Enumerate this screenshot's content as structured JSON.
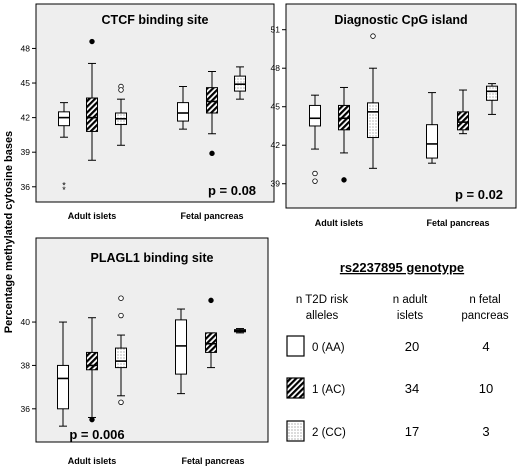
{
  "y_axis_label": "Percentage methylated cytosine bases",
  "colors": {
    "panel_bg": "#eeeeee",
    "box_fill": "#ffffff",
    "stroke": "#000000"
  },
  "chart_data": [
    {
      "type": "box",
      "title": "CTCF binding site",
      "categories": [
        "Adult islets",
        "Fetal pancreas"
      ],
      "ylim": [
        35.2,
        49.6
      ],
      "yticks": [
        36,
        39,
        42,
        45,
        48
      ],
      "p_value_text": "p = 0.08",
      "groups": [
        {
          "category": "Adult islets",
          "genotype": "0 (AA)",
          "whisker_low": 40.3,
          "q1": 41.3,
          "median": 42.0,
          "q3": 42.5,
          "whisker_high": 43.3,
          "outliers": [],
          "extremes": [
            36.2,
            35.8
          ],
          "pattern": "white"
        },
        {
          "category": "Adult islets",
          "genotype": "1 (AC)",
          "whisker_low": 38.3,
          "q1": 40.8,
          "median": 42.0,
          "q3": 43.7,
          "whisker_high": 46.7,
          "outliers": [
            48.6
          ],
          "extremes": [],
          "pattern": "hatch"
        },
        {
          "category": "Adult islets",
          "genotype": "2 (CC)",
          "whisker_low": 39.6,
          "q1": 41.4,
          "median": 41.9,
          "q3": 42.4,
          "whisker_high": 43.6,
          "outliers": [
            44.7,
            44.4
          ],
          "extremes": [],
          "pattern": "dots"
        },
        {
          "category": "Fetal pancreas",
          "genotype": "0 (AA)",
          "whisker_low": 41.0,
          "q1": 41.7,
          "median": 42.4,
          "q3": 43.3,
          "whisker_high": 44.7,
          "outliers": [],
          "extremes": [],
          "pattern": "white"
        },
        {
          "category": "Fetal pancreas",
          "genotype": "1 (AC)",
          "whisker_low": 40.6,
          "q1": 42.4,
          "median": 43.4,
          "q3": 44.6,
          "whisker_high": 46.0,
          "outliers": [
            38.9
          ],
          "extremes": [],
          "pattern": "hatch"
        },
        {
          "category": "Fetal pancreas",
          "genotype": "2 (CC)",
          "whisker_low": 43.6,
          "q1": 44.3,
          "median": 44.9,
          "q3": 45.6,
          "whisker_high": 46.4,
          "outliers": [],
          "extremes": [],
          "pattern": "dots"
        }
      ]
    },
    {
      "type": "box",
      "title": "Diagnostic CpG island",
      "categories": [
        "Adult islets",
        "Fetal pancreas"
      ],
      "ylim": [
        38.2,
        51.6
      ],
      "yticks": [
        39,
        42,
        45,
        48,
        51
      ],
      "p_value_text": "p = 0.02",
      "groups": [
        {
          "category": "Adult islets",
          "genotype": "0 (AA)",
          "whisker_low": 41.7,
          "q1": 43.5,
          "median": 44.1,
          "q3": 45.1,
          "whisker_high": 45.9,
          "outliers": [
            39.8,
            39.2
          ],
          "extremes": [],
          "pattern": "white"
        },
        {
          "category": "Adult islets",
          "genotype": "1 (AC)",
          "whisker_low": 41.4,
          "q1": 43.2,
          "median": 44.1,
          "q3": 45.1,
          "whisker_high": 46.5,
          "outliers": [
            39.3
          ],
          "extremes": [],
          "pattern": "hatch"
        },
        {
          "category": "Adult islets",
          "genotype": "2 (CC)",
          "whisker_low": 40.2,
          "q1": 42.6,
          "median": 44.6,
          "q3": 45.3,
          "whisker_high": 48.0,
          "outliers": [
            50.5
          ],
          "extremes": [],
          "pattern": "dots"
        },
        {
          "category": "Fetal pancreas",
          "genotype": "0 (AA)",
          "whisker_low": 40.6,
          "q1": 41.0,
          "median": 42.1,
          "q3": 43.6,
          "whisker_high": 46.1,
          "outliers": [],
          "extremes": [],
          "pattern": "white"
        },
        {
          "category": "Fetal pancreas",
          "genotype": "1 (AC)",
          "whisker_low": 42.9,
          "q1": 43.2,
          "median": 43.8,
          "q3": 44.6,
          "whisker_high": 46.3,
          "outliers": [],
          "extremes": [],
          "pattern": "hatch"
        },
        {
          "category": "Fetal pancreas",
          "genotype": "2 (CC)",
          "whisker_low": 44.4,
          "q1": 45.5,
          "median": 46.2,
          "q3": 46.6,
          "whisker_high": 46.8,
          "outliers": [],
          "extremes": [],
          "pattern": "dots"
        }
      ]
    },
    {
      "type": "box",
      "title": "PLAGL1 binding site",
      "categories": [
        "Adult islets",
        "Fetal pancreas"
      ],
      "ylim": [
        34.7,
        42.4
      ],
      "yticks": [
        36,
        38,
        40
      ],
      "p_value_text": "p = 0.006",
      "groups": [
        {
          "category": "Adult islets",
          "genotype": "0 (AA)",
          "whisker_low": 35.2,
          "q1": 36.0,
          "median": 37.4,
          "q3": 38.0,
          "whisker_high": 40.0,
          "outliers": [],
          "extremes": [],
          "pattern": "white"
        },
        {
          "category": "Adult islets",
          "genotype": "1 (AC)",
          "whisker_low": 35.6,
          "q1": 37.8,
          "median": 38.0,
          "q3": 38.6,
          "whisker_high": 40.2,
          "outliers": [
            35.5
          ],
          "extremes": [],
          "pattern": "hatch"
        },
        {
          "category": "Adult islets",
          "genotype": "2 (CC)",
          "whisker_low": 36.6,
          "q1": 37.9,
          "median": 38.2,
          "q3": 38.8,
          "whisker_high": 39.4,
          "outliers": [
            41.1,
            40.3,
            36.3
          ],
          "extremes": [],
          "pattern": "dots"
        },
        {
          "category": "Fetal pancreas",
          "genotype": "0 (AA)",
          "whisker_low": 36.7,
          "q1": 37.6,
          "median": 38.9,
          "q3": 40.1,
          "whisker_high": 40.6,
          "outliers": [],
          "extremes": [],
          "pattern": "white"
        },
        {
          "category": "Fetal pancreas",
          "genotype": "1 (AC)",
          "whisker_low": 37.9,
          "q1": 38.6,
          "median": 39.0,
          "q3": 39.5,
          "whisker_high": 39.5,
          "outliers": [
            41.0
          ],
          "extremes": [],
          "pattern": "hatch"
        },
        {
          "category": "Fetal pancreas",
          "genotype": "2 (CC)",
          "whisker_low": 39.5,
          "q1": 39.55,
          "median": 39.6,
          "q3": 39.65,
          "whisker_high": 39.7,
          "outliers": [],
          "extremes": [],
          "pattern": "dots"
        }
      ]
    }
  ],
  "legend": {
    "title": "rs2237895 genotype",
    "col1_header": "n T2D risk alleles",
    "col2_header": "n adult islets",
    "col3_header": "n fetal pancreas",
    "rows": [
      {
        "label": "0 (AA)",
        "n_adult": "20",
        "n_fetal": "4",
        "pattern": "white"
      },
      {
        "label": "1 (AC)",
        "n_adult": "34",
        "n_fetal": "10",
        "pattern": "hatch"
      },
      {
        "label": "2 (CC)",
        "n_adult": "17",
        "n_fetal": "3",
        "pattern": "dots"
      }
    ]
  }
}
